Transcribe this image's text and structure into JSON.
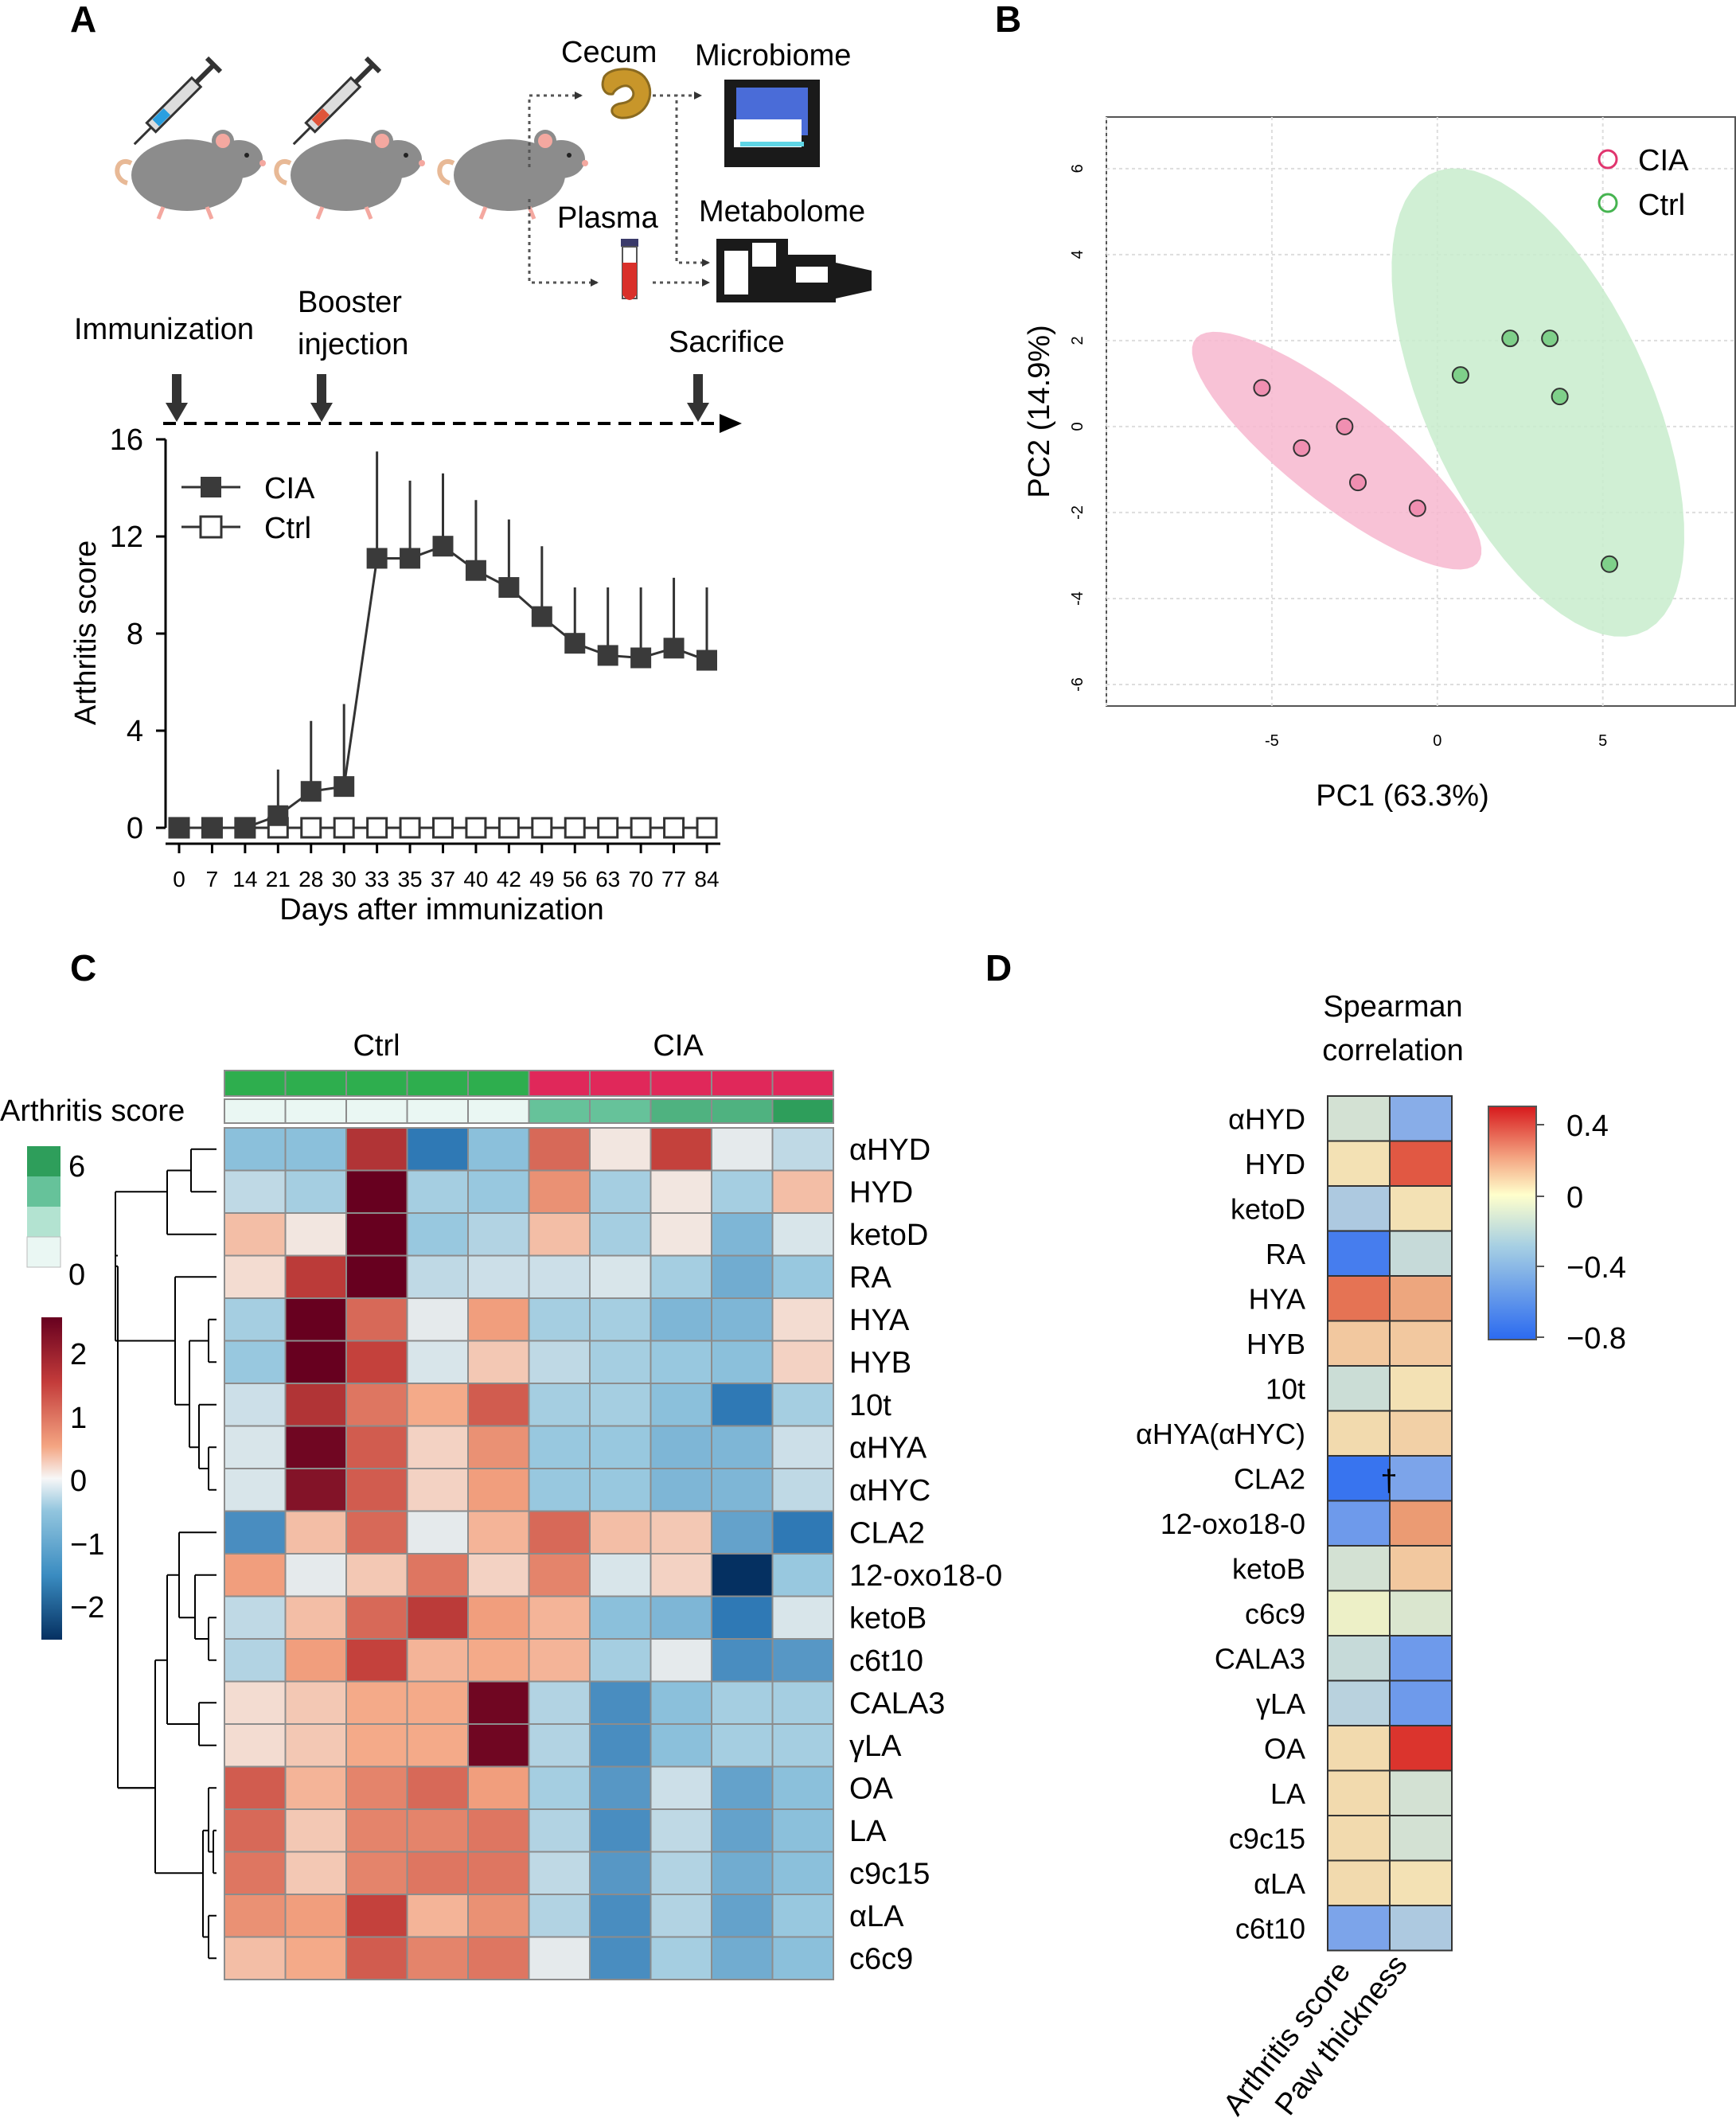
{
  "panels": {
    "a": "A",
    "b": "B",
    "c": "C",
    "d": "D"
  },
  "panel_a": {
    "schematic": {
      "cecum": "Cecum",
      "microbiome": "Microbiome",
      "plasma": "Plasma",
      "metabolome": "Metabolome",
      "immunization": "Immunization",
      "booster_line1": "Booster",
      "booster_line2": "injection",
      "sacrifice": "Sacrifice"
    },
    "icons": [
      "syringe-blue-icon",
      "mouse-icon",
      "syringe-red-icon",
      "cecum-icon",
      "sequencer-icon",
      "blood-tube-icon",
      "mass-spectrometer-icon"
    ],
    "colors": {
      "mouse": "#8c8c8c",
      "mouse_ear": "#f4a8a0",
      "syringe_blue": "#2a9fe0",
      "syringe_red": "#e0553a",
      "cecum": "#c8962a",
      "blood": "#d9302a"
    }
  },
  "panel_c": {
    "group_ctrl": "Ctrl",
    "group_cia": "CIA",
    "arthritis_score_label": "Arthritis score",
    "score_legend_ticks": [
      "6",
      "0"
    ],
    "score_legend_colors": [
      "#2e9e5b",
      "#66c29a",
      "#b3e3d1",
      "#eaf7f3"
    ],
    "color_scale_ticks": [
      "2",
      "1",
      "0",
      "−1",
      "−2"
    ],
    "annotation_colors": {
      "ctrl": "#2eae4e",
      "cia": "#e0285a"
    }
  },
  "panel_d": {
    "title_line1": "Spearman",
    "title_line2": "correlation",
    "legend_ticks": [
      "0.4",
      "0",
      "−0.4",
      "−0.8"
    ],
    "dagger": "†",
    "x_labels": [
      "Arthritis score",
      "Paw thickness"
    ]
  },
  "chart_data": [
    {
      "type": "line",
      "title": "",
      "xlabel": "Days after immunization",
      "ylabel": "Arthritis score",
      "ylim": [
        0,
        16
      ],
      "yticks": [
        "0",
        "4",
        "8",
        "12",
        "16"
      ],
      "categories": [
        "0",
        "7",
        "14",
        "21",
        "28",
        "30",
        "33",
        "35",
        "37",
        "40",
        "42",
        "49",
        "56",
        "63",
        "70",
        "77",
        "84"
      ],
      "series": [
        {
          "name": "CIA",
          "marker": "filled-square",
          "values": [
            0,
            0,
            0,
            0.5,
            1.5,
            1.7,
            11.1,
            11.1,
            11.6,
            10.6,
            9.9,
            8.7,
            7.6,
            7.1,
            7.0,
            7.4,
            6.9
          ],
          "error_upper": [
            0,
            0,
            0,
            2.4,
            4.4,
            5.1,
            15.5,
            14.3,
            14.6,
            13.5,
            12.7,
            11.6,
            9.9,
            9.9,
            9.9,
            10.3,
            9.9
          ]
        },
        {
          "name": "Ctrl",
          "marker": "open-square",
          "values": [
            0,
            0,
            0,
            0,
            0,
            0,
            0,
            0,
            0,
            0,
            0,
            0,
            0,
            0,
            0,
            0,
            0
          ]
        }
      ]
    },
    {
      "type": "scatter",
      "title": "",
      "xlabel": "PC1 (63.3%)",
      "ylabel": "PC2 (14.9%)",
      "xlim": [
        -10,
        9
      ],
      "ylim": [
        -6.5,
        7.2
      ],
      "xticks": [
        "-5",
        "0",
        "5"
      ],
      "yticks": [
        "6",
        "4",
        "2",
        "0",
        "-2",
        "-4",
        "-6"
      ],
      "grid": true,
      "legend_position": "top-right",
      "series": [
        {
          "name": "CIA",
          "color": "#e0356e",
          "fill": "#f7b7cf",
          "points": [
            [
              -5.3,
              0.9
            ],
            [
              -4.1,
              -0.5
            ],
            [
              -2.8,
              0.0
            ],
            [
              -2.4,
              -1.3
            ],
            [
              -0.6,
              -1.9
            ]
          ]
        },
        {
          "name": "Ctrl",
          "color": "#46b450",
          "fill": "#c8eccd",
          "points": [
            [
              0.7,
              1.2
            ],
            [
              2.2,
              2.05
            ],
            [
              3.4,
              2.05
            ],
            [
              3.7,
              0.7
            ],
            [
              5.2,
              -3.2
            ]
          ]
        }
      ]
    },
    {
      "type": "heatmap",
      "title": "",
      "columns_ctrl": 5,
      "columns_cia": 5,
      "arthritis_score_levels": [
        0,
        0,
        0,
        0,
        0,
        3,
        3,
        4,
        4,
        6
      ],
      "rows": [
        "αHYD",
        "HYD",
        "ketoD",
        "RA",
        "HYA",
        "HYB",
        "10t",
        "αHYA",
        "αHYC",
        "CLA2",
        "12-oxo18-0",
        "ketoB",
        "c6t10",
        "CALA3",
        "γLA",
        "OA",
        "LA",
        "c9c15",
        "αLA",
        "c6c9"
      ],
      "scale": [
        -2.5,
        2.5
      ],
      "values": [
        [
          -0.8,
          -0.8,
          1.7,
          -1.5,
          -0.8,
          1.2,
          0.1,
          1.5,
          -0.1,
          -0.4
        ],
        [
          -0.4,
          -0.6,
          3.0,
          -0.6,
          -0.7,
          0.9,
          -0.6,
          0.1,
          -0.6,
          0.5
        ],
        [
          0.5,
          0.1,
          3.0,
          -0.7,
          -0.5,
          0.5,
          -0.6,
          0.1,
          -0.9,
          -0.2
        ],
        [
          0.2,
          1.6,
          2.5,
          -0.4,
          -0.3,
          -0.3,
          -0.2,
          -0.6,
          -1.0,
          -0.7
        ],
        [
          -0.6,
          2.5,
          1.2,
          -0.1,
          0.8,
          -0.6,
          -0.6,
          -0.9,
          -0.9,
          0.2
        ],
        [
          -0.7,
          2.5,
          1.5,
          -0.2,
          0.4,
          -0.4,
          -0.6,
          -0.7,
          -0.8,
          0.3
        ],
        [
          -0.3,
          1.7,
          1.1,
          0.7,
          1.3,
          -0.6,
          -0.6,
          -0.8,
          -1.5,
          -0.6
        ],
        [
          -0.2,
          2.4,
          1.3,
          0.3,
          0.9,
          -0.7,
          -0.7,
          -0.9,
          -0.9,
          -0.3
        ],
        [
          -0.2,
          2.2,
          1.3,
          0.3,
          0.8,
          -0.7,
          -0.7,
          -0.9,
          -0.9,
          -0.4
        ],
        [
          -1.3,
          0.5,
          1.2,
          -0.1,
          0.6,
          1.2,
          0.5,
          0.4,
          -1.1,
          -1.5
        ],
        [
          0.8,
          -0.1,
          0.4,
          1.1,
          0.3,
          1.0,
          -0.2,
          0.3,
          -2.5,
          -0.7
        ],
        [
          -0.4,
          0.5,
          1.2,
          1.6,
          0.8,
          0.6,
          -0.8,
          -0.9,
          -1.5,
          -0.2
        ],
        [
          -0.5,
          0.8,
          1.5,
          0.6,
          0.7,
          0.6,
          -0.6,
          -0.1,
          -1.3,
          -1.2
        ],
        [
          0.2,
          0.4,
          0.7,
          0.7,
          2.4,
          -0.5,
          -1.3,
          -0.8,
          -0.6,
          -0.6
        ],
        [
          0.2,
          0.4,
          0.7,
          0.7,
          2.4,
          -0.5,
          -1.3,
          -0.8,
          -0.6,
          -0.6
        ],
        [
          1.3,
          0.6,
          1.0,
          1.2,
          0.8,
          -0.6,
          -1.2,
          -0.3,
          -1.1,
          -0.8
        ],
        [
          1.2,
          0.4,
          1.0,
          1.0,
          1.1,
          -0.5,
          -1.3,
          -0.4,
          -1.1,
          -0.8
        ],
        [
          1.1,
          0.4,
          1.0,
          1.1,
          1.1,
          -0.4,
          -1.2,
          -0.5,
          -1.0,
          -0.8
        ],
        [
          0.9,
          0.8,
          1.5,
          0.6,
          0.9,
          -0.5,
          -1.3,
          -0.5,
          -1.1,
          -0.7
        ],
        [
          0.5,
          0.7,
          1.3,
          1.0,
          1.1,
          -0.1,
          -1.3,
          -0.6,
          -1.0,
          -0.8
        ]
      ]
    },
    {
      "type": "heatmap",
      "title": "Spearman correlation",
      "rows": [
        "αHYD",
        "HYD",
        "ketoD",
        "RA",
        "HYA",
        "HYB",
        "10t",
        "αHYA(αHYC)",
        "CLA2",
        "12-oxo18-0",
        "ketoB",
        "c6c9",
        "CALA3",
        "γLA",
        "OA",
        "LA",
        "c9c15",
        "αLA",
        "c6t10"
      ],
      "columns": [
        "Arthritis score",
        "Paw thickness"
      ],
      "scale": [
        -0.8,
        0.45
      ],
      "values": [
        [
          -0.15,
          -0.45
        ],
        [
          0.05,
          0.38
        ],
        [
          -0.3,
          0.05
        ],
        [
          -0.7,
          -0.2
        ],
        [
          0.35,
          0.25
        ],
        [
          0.15,
          0.15
        ],
        [
          -0.18,
          0.05
        ],
        [
          0.08,
          0.12
        ],
        [
          -0.75,
          -0.5
        ],
        [
          -0.55,
          0.28
        ],
        [
          -0.15,
          0.15
        ],
        [
          -0.05,
          -0.12
        ],
        [
          -0.2,
          -0.55
        ],
        [
          -0.25,
          -0.55
        ],
        [
          0.08,
          0.42
        ],
        [
          0.08,
          -0.15
        ],
        [
          0.08,
          -0.15
        ],
        [
          0.08,
          0.05
        ],
        [
          -0.5,
          -0.3
        ]
      ]
    }
  ]
}
